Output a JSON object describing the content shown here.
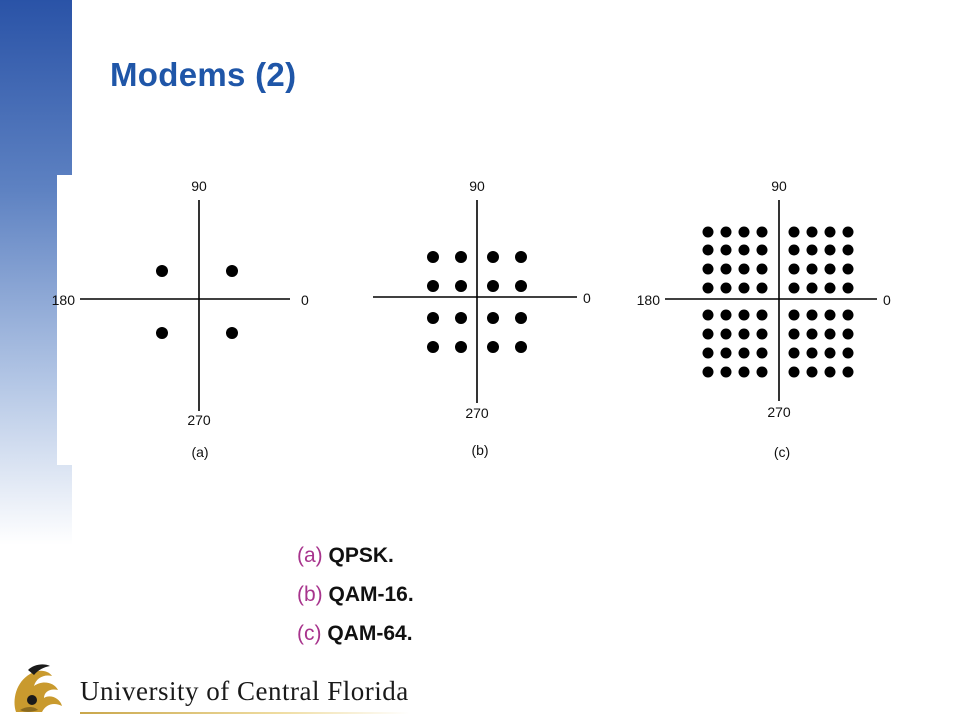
{
  "slide": {
    "title": "Modems (2)"
  },
  "diagrams": [
    {
      "id": "a",
      "top_label": "90",
      "bottom_label": "270",
      "left_label": "180",
      "right_label": "0",
      "sub_label": "(a)",
      "grid": 2
    },
    {
      "id": "b",
      "top_label": "90",
      "bottom_label": "270",
      "left_label": "",
      "right_label": "0",
      "sub_label": "(b)",
      "grid": 4
    },
    {
      "id": "c",
      "top_label": "90",
      "bottom_label": "270",
      "left_label": "180",
      "right_label": "0",
      "sub_label": "(c)",
      "grid": 8
    }
  ],
  "captions": [
    {
      "letter": "(a)",
      "text": "QPSK."
    },
    {
      "letter": "(b)",
      "text": "QAM-16."
    },
    {
      "letter": "(c)",
      "text": "QAM-64."
    }
  ],
  "footer": {
    "university": "University of Central Florida"
  },
  "colors": {
    "title": "#1f56a8",
    "caption_letter": "#a8348d",
    "sidebar_top": "#2a53a7",
    "footer_rule": "#c9a64a",
    "logo_gold": "#c99a2e"
  }
}
